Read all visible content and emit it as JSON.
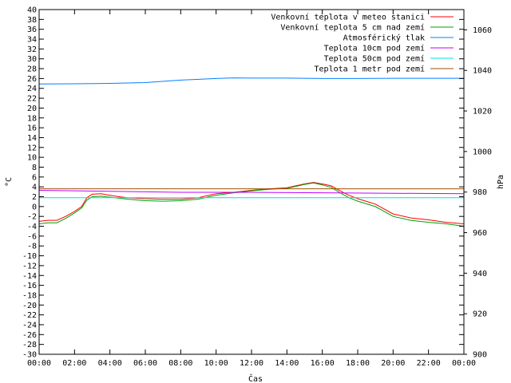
{
  "chart_data": {
    "type": "line",
    "xlabel": "Čas",
    "ylabel": "°C",
    "y2label": "hPa",
    "xlim": [
      0,
      24
    ],
    "ylim": [
      -30,
      40
    ],
    "y2lim": [
      900,
      1070
    ],
    "x_ticks": [
      "00:00",
      "02:00",
      "04:00",
      "06:00",
      "08:00",
      "10:00",
      "12:00",
      "14:00",
      "16:00",
      "18:00",
      "20:00",
      "22:00",
      "00:00"
    ],
    "y_ticks": [
      40,
      38,
      36,
      34,
      32,
      30,
      28,
      26,
      24,
      22,
      20,
      18,
      16,
      14,
      12,
      10,
      8,
      6,
      4,
      2,
      0,
      -2,
      -4,
      -6,
      -8,
      -10,
      -12,
      -14,
      -16,
      -18,
      -20,
      -22,
      -24,
      -26,
      -28,
      -30
    ],
    "y2_ticks": [
      1060,
      1040,
      1020,
      1000,
      980,
      960,
      940,
      920,
      900
    ],
    "legend_position": "top-right",
    "series": [
      {
        "name": "Venkovní teplota v meteo stanici",
        "color": "#ff0000",
        "axis": "y",
        "x": [
          0,
          0.5,
          1,
          1.5,
          2,
          2.4,
          2.7,
          3,
          3.5,
          4,
          4.5,
          5,
          6,
          7,
          8,
          9,
          10,
          11,
          12,
          13,
          14,
          14.5,
          15,
          15.5,
          16,
          16.5,
          17,
          17.5,
          18,
          19,
          20,
          21,
          22,
          23,
          24
        ],
        "y": [
          -3,
          -2.8,
          -2.8,
          -2,
          -1,
          0,
          1.8,
          2.5,
          2.6,
          2.3,
          2,
          1.8,
          1.6,
          1.5,
          1.5,
          1.8,
          2.6,
          2.9,
          3.3,
          3.6,
          3.8,
          4.2,
          4.6,
          4.9,
          4.6,
          4.2,
          3.2,
          2.3,
          1.6,
          0.5,
          -1.5,
          -2.3,
          -2.7,
          -3.2,
          -3.5
        ]
      },
      {
        "name": "Venkovní teplota 5 cm nad zemí",
        "color": "#00a000",
        "axis": "y",
        "x": [
          0,
          0.5,
          1,
          1.5,
          2,
          2.4,
          2.7,
          3,
          3.5,
          4,
          4.5,
          5,
          6,
          7,
          8,
          9,
          10,
          11,
          12,
          13,
          14,
          14.5,
          15,
          15.5,
          16,
          16.5,
          17,
          17.5,
          18,
          19,
          20,
          21,
          22,
          23,
          24
        ],
        "y": [
          -3.5,
          -3.3,
          -3.3,
          -2.4,
          -1.3,
          -0.3,
          1.3,
          2,
          2.1,
          1.9,
          1.7,
          1.5,
          1.2,
          1.1,
          1.2,
          1.5,
          2.3,
          2.8,
          3.2,
          3.5,
          3.7,
          4.1,
          4.5,
          4.8,
          4.4,
          3.9,
          2.8,
          1.8,
          1.1,
          0,
          -2,
          -2.8,
          -3.2,
          -3.5,
          -4
        ]
      },
      {
        "name": "Atmosférický tlak",
        "color": "#0080ff",
        "axis": "y2",
        "x": [
          0,
          2,
          4,
          6,
          8,
          10,
          11,
          12,
          14,
          16,
          18,
          20,
          22,
          24
        ],
        "y": [
          1033.3,
          1033.4,
          1033.6,
          1034,
          1035.2,
          1036,
          1036.3,
          1036.2,
          1036.2,
          1036,
          1036,
          1036.1,
          1036.1,
          1036.1
        ]
      },
      {
        "name": "Teplota 10cm pod zemí",
        "color": "#c000ff",
        "axis": "y",
        "x": [
          0,
          4,
          8,
          12,
          16,
          20,
          24
        ],
        "y": [
          3.3,
          3.1,
          2.9,
          2.9,
          2.8,
          2.7,
          2.6
        ]
      },
      {
        "name": "Teplota 50cm pod zemí",
        "color": "#00e0e0",
        "axis": "y",
        "x": [
          0,
          6,
          12,
          18,
          24
        ],
        "y": [
          1.8,
          1.8,
          1.8,
          1.8,
          1.8
        ]
      },
      {
        "name": "Teplota 1 metr pod zemí",
        "color": "#a05000",
        "axis": "y",
        "x": [
          0,
          6,
          12,
          18,
          24
        ],
        "y": [
          3.6,
          3.6,
          3.6,
          3.6,
          3.6
        ]
      }
    ]
  }
}
